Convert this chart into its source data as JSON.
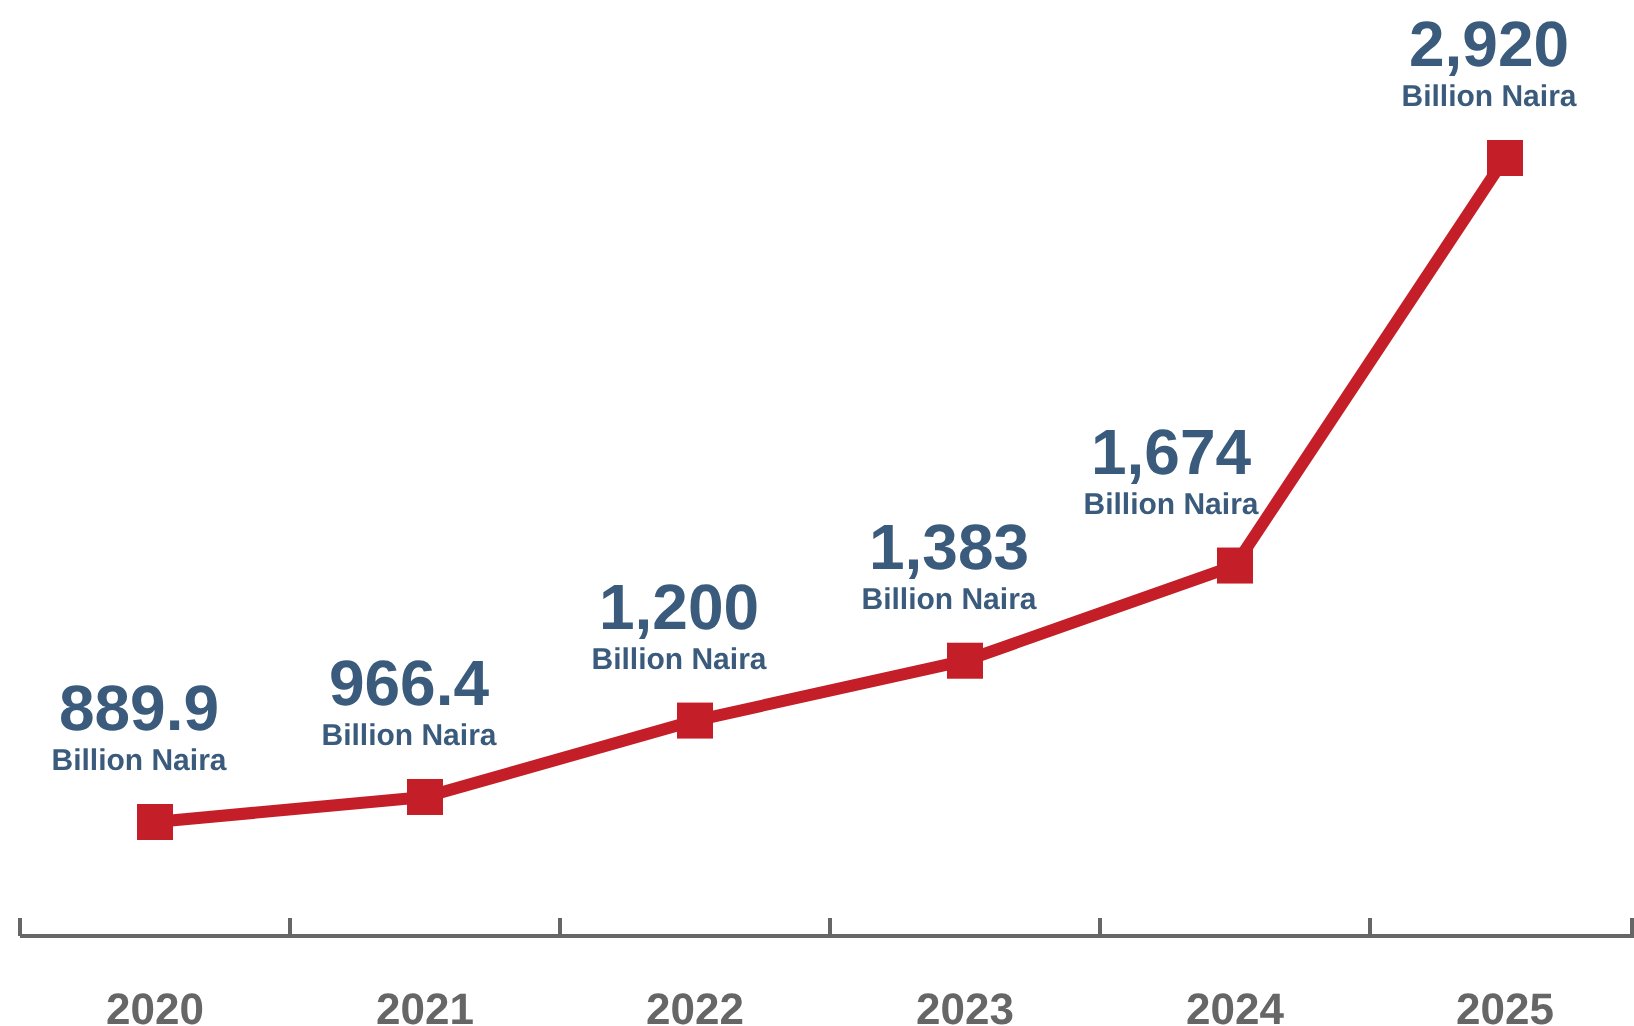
{
  "chart_data": {
    "type": "line",
    "categories": [
      "2020",
      "2021",
      "2022",
      "2023",
      "2024",
      "2025"
    ],
    "series": [
      {
        "color": "#c41f28",
        "values": [
          889.9,
          966.4,
          1200,
          1383,
          1674,
          2920
        ],
        "value_labels": [
          "889.9",
          "966.4",
          "1,200",
          "1,383",
          "1,674",
          "2,920"
        ]
      }
    ],
    "annotations": [
      {
        "text": "Billion Naira",
        "x": "2020",
        "y": 889.9
      },
      {
        "text": "Billion Naira",
        "x": "2021",
        "y": 966.4
      },
      {
        "text": "Billion Naira",
        "x": "2022",
        "y": 1200
      },
      {
        "text": "Billion Naira",
        "x": "2023",
        "y": 1383
      },
      {
        "text": "Billion Naira",
        "x": "2024",
        "y": 1674
      },
      {
        "text": "Billion Naira",
        "x": "2025",
        "y": 2920
      }
    ],
    "marker": "square",
    "line_style": "solid",
    "tick_labels": "x"
  }
}
